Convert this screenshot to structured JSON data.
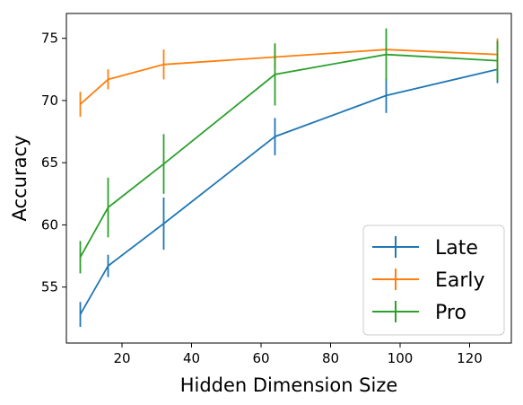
{
  "chart_data": {
    "type": "line",
    "title": "",
    "xlabel": "Hidden Dimension Size",
    "ylabel": "Accuracy",
    "xlim": [
      4,
      132
    ],
    "ylim": [
      50.5,
      77.0
    ],
    "xticks": [
      20,
      40,
      60,
      80,
      100,
      120
    ],
    "yticks": [
      55,
      60,
      65,
      70,
      75
    ],
    "grid": false,
    "legend_position": "bottom-right",
    "series": [
      {
        "name": "Late",
        "color": "#1f77b4",
        "x": [
          8,
          16,
          32,
          64,
          96,
          128
        ],
        "y": [
          52.8,
          56.7,
          60.1,
          67.1,
          70.4,
          72.5
        ],
        "err": [
          1.0,
          0.9,
          2.1,
          1.5,
          1.4,
          1.1
        ]
      },
      {
        "name": "Early",
        "color": "#ff7f0e",
        "x": [
          8,
          16,
          32,
          64,
          96,
          128
        ],
        "y": [
          69.7,
          71.7,
          72.9,
          73.5,
          74.1,
          73.7
        ],
        "err": [
          1.0,
          0.8,
          1.2,
          1.0,
          0.0,
          1.3
        ]
      },
      {
        "name": "Pro",
        "color": "#2ca02c",
        "x": [
          8,
          16,
          32,
          64,
          96,
          128
        ],
        "y": [
          57.4,
          61.4,
          64.9,
          72.1,
          73.7,
          73.2
        ],
        "err": [
          1.3,
          2.4,
          2.4,
          2.5,
          2.1,
          1.6
        ]
      }
    ]
  }
}
